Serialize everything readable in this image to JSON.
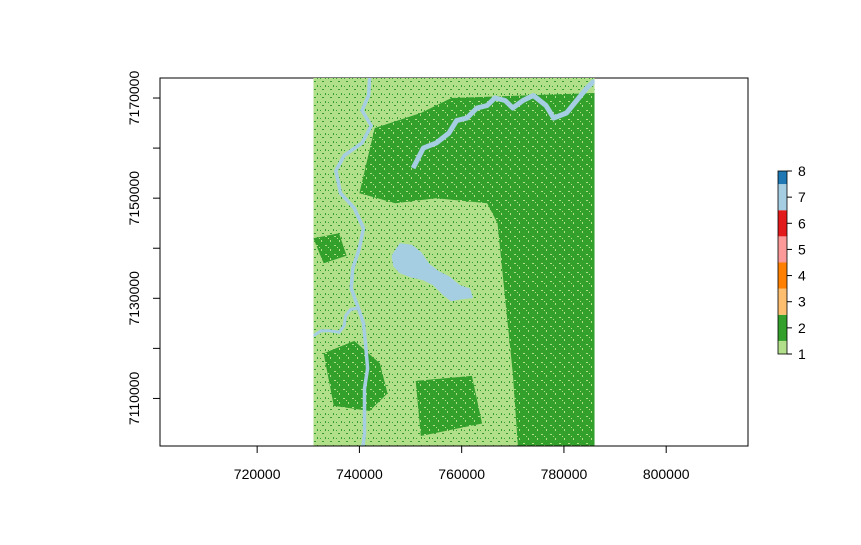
{
  "chart_data": {
    "type": "heatmap",
    "title": "",
    "xlabel": "",
    "ylabel": "",
    "xlim": [
      701000,
      816000
    ],
    "ylim": [
      7100500,
      7174000
    ],
    "raster_extent": {
      "x": [
        731000,
        786000
      ],
      "y": [
        7100500,
        7174000
      ]
    },
    "x_ticks": [
      {
        "value": 720000,
        "label": "720000"
      },
      {
        "value": 740000,
        "label": "740000"
      },
      {
        "value": 760000,
        "label": "760000"
      },
      {
        "value": 780000,
        "label": "780000"
      },
      {
        "value": 800000,
        "label": "800000"
      }
    ],
    "y_ticks": [
      {
        "value": 7170000,
        "label": "7170000"
      },
      {
        "value": 7160000,
        "label": ""
      },
      {
        "value": 7150000,
        "label": "7150000"
      },
      {
        "value": 7140000,
        "label": ""
      },
      {
        "value": 7130000,
        "label": "7130000"
      },
      {
        "value": 7120000,
        "label": ""
      },
      {
        "value": 7110000,
        "label": "7110000"
      }
    ],
    "legend": {
      "placement": "right",
      "classes": [
        {
          "value": 1,
          "label": "1",
          "color": "#b2df8a"
        },
        {
          "value": 2,
          "label": "2",
          "color": "#33a02c"
        },
        {
          "value": 3,
          "label": "3",
          "color": "#fdbf6f"
        },
        {
          "value": 4,
          "label": "4",
          "color": "#ff7f00"
        },
        {
          "value": 5,
          "label": "5",
          "color": "#fb9a99"
        },
        {
          "value": 6,
          "label": "6",
          "color": "#e31a1c"
        },
        {
          "value": 7,
          "label": "7",
          "color": "#a6cee3"
        },
        {
          "value": 8,
          "label": "8",
          "color": "#1f78b4"
        }
      ]
    },
    "river_north": [
      [
        742000,
        7174000
      ],
      [
        741800,
        7170500
      ],
      [
        740500,
        7167500
      ],
      [
        742300,
        7164500
      ],
      [
        740500,
        7161000
      ],
      [
        737000,
        7158500
      ],
      [
        735400,
        7155500
      ],
      [
        736300,
        7151000
      ],
      [
        739000,
        7148000
      ],
      [
        740800,
        7144000
      ],
      [
        740000,
        7140000
      ],
      [
        738700,
        7136000
      ],
      [
        738400,
        7132000
      ],
      [
        739800,
        7128000
      ],
      [
        740800,
        7125000
      ],
      [
        741200,
        7121000
      ],
      [
        741600,
        7116000
      ],
      [
        741000,
        7112000
      ],
      [
        741000,
        7108000
      ],
      [
        741000,
        7103000
      ],
      [
        740700,
        7100500
      ]
    ],
    "river_south": [
      [
        731000,
        7122500
      ],
      [
        732500,
        7123500
      ],
      [
        734200,
        7123500
      ],
      [
        736000,
        7123200
      ],
      [
        737000,
        7124500
      ],
      [
        737300,
        7126500
      ],
      [
        738300,
        7127800
      ],
      [
        739800,
        7128000
      ]
    ],
    "river_east": [
      [
        750500,
        7156000
      ],
      [
        751500,
        7158000
      ],
      [
        752500,
        7160000
      ],
      [
        755000,
        7161000
      ],
      [
        757500,
        7163000
      ],
      [
        759000,
        7165500
      ],
      [
        761000,
        7166000
      ],
      [
        763000,
        7168000
      ],
      [
        765000,
        7168500
      ],
      [
        766500,
        7170000
      ],
      [
        768500,
        7169500
      ],
      [
        770000,
        7168000
      ],
      [
        772000,
        7169500
      ],
      [
        774000,
        7170500
      ],
      [
        776500,
        7168500
      ],
      [
        778000,
        7166000
      ],
      [
        780500,
        7167000
      ],
      [
        782500,
        7169500
      ],
      [
        784500,
        7172000
      ],
      [
        786000,
        7173500
      ]
    ],
    "lake": [
      [
        746500,
        7138500
      ],
      [
        748000,
        7140800
      ],
      [
        750200,
        7140500
      ],
      [
        752000,
        7139000
      ],
      [
        753500,
        7136800
      ],
      [
        755500,
        7135200
      ],
      [
        757500,
        7134200
      ],
      [
        759500,
        7132500
      ],
      [
        761500,
        7131800
      ],
      [
        762000,
        7130200
      ],
      [
        760000,
        7130000
      ],
      [
        758000,
        7129600
      ],
      [
        756500,
        7130800
      ],
      [
        754500,
        7132800
      ],
      [
        752500,
        7133800
      ],
      [
        750000,
        7134400
      ],
      [
        748000,
        7135200
      ],
      [
        746800,
        7136500
      ]
    ],
    "dark_regions": [
      [
        [
          743000,
          7164000
        ],
        [
          752000,
          7167000
        ],
        [
          758000,
          7170000
        ],
        [
          786000,
          7171000
        ],
        [
          786000,
          7100500
        ],
        [
          771000,
          7100500
        ],
        [
          770000,
          7115000
        ],
        [
          768500,
          7130000
        ],
        [
          767000,
          7145000
        ],
        [
          765000,
          7149000
        ],
        [
          755000,
          7150000
        ],
        [
          747000,
          7149000
        ],
        [
          740000,
          7151000
        ]
      ],
      [
        [
          733000,
          7119000
        ],
        [
          739000,
          7121500
        ],
        [
          744000,
          7117000
        ],
        [
          745500,
          7111000
        ],
        [
          742000,
          7107500
        ],
        [
          735000,
          7108500
        ]
      ],
      [
        [
          751000,
          7113500
        ],
        [
          762000,
          7114500
        ],
        [
          764000,
          7105000
        ],
        [
          752000,
          7102500
        ]
      ],
      [
        [
          731000,
          7142000
        ],
        [
          736000,
          7143000
        ],
        [
          737500,
          7138500
        ],
        [
          733000,
          7137000
        ]
      ]
    ]
  }
}
